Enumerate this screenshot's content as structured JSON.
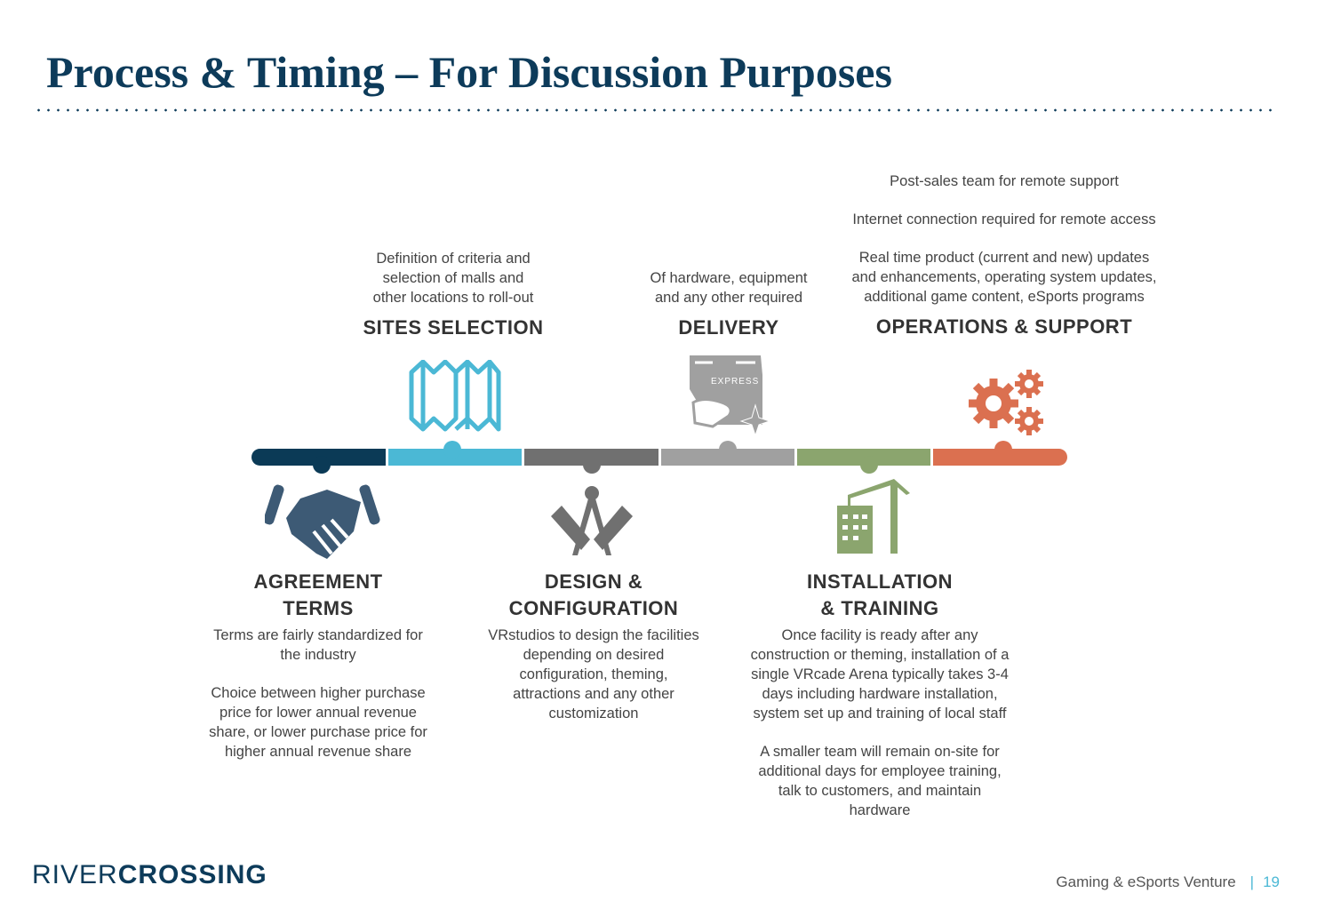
{
  "title": "Process & Timing – For Discussion Purposes",
  "colors": {
    "navy": "#0b3a56",
    "blue": "#4bb8d5",
    "gray": "#707070",
    "lightgray": "#a0a0a0",
    "green": "#8ba56e",
    "orange": "#db7050"
  },
  "steps": {
    "agreement": {
      "title1": "AGREEMENT",
      "title2": "TERMS",
      "desc": [
        "Terms are fairly standardized for",
        "the industry",
        "",
        "Choice between higher purchase",
        "price for lower annual revenue",
        "share, or lower purchase price for",
        "higher annual revenue share"
      ],
      "icon": "handshake-icon"
    },
    "sites": {
      "title": "SITES SELECTION",
      "desc": [
        "Definition of criteria and",
        "selection of malls and",
        "other locations to roll-out"
      ],
      "icon": "map-icon"
    },
    "design": {
      "title1": "DESIGN &",
      "title2": "CONFIGURATION",
      "desc": [
        "VRstudios to design the facilities",
        "depending on desired",
        "configuration, theming,",
        "attractions and any other",
        "customization"
      ],
      "icon": "compass-ruler-icon"
    },
    "delivery": {
      "title": "DELIVERY",
      "desc": [
        "Of hardware, equipment",
        "and any other required"
      ],
      "icon": "express-box-icon",
      "icon_text": "EXPRESS"
    },
    "installation": {
      "title1": "INSTALLATION",
      "title2": "& TRAINING",
      "desc": [
        "Once facility is ready after any",
        "construction or theming, installation of a",
        "single VRcade Arena typically takes 3-4",
        "days including hardware installation,",
        "system set up and training of local staff",
        "",
        "A smaller team will remain on-site for",
        "additional days for employee training,",
        "talk to customers, and maintain",
        "hardware"
      ],
      "icon": "crane-building-icon"
    },
    "operations": {
      "title": "OPERATIONS & SUPPORT",
      "desc": [
        "Post-sales team for remote support",
        "",
        "Internet connection required for remote access",
        "",
        "Real time product (current and new) updates",
        "and enhancements, operating system updates,",
        "additional game content, eSports programs"
      ],
      "icon": "gears-icon"
    }
  },
  "footer": {
    "logo_light": "RIVER",
    "logo_bold": "CROSSING",
    "text": "Gaming & eSports Venture",
    "separator": "|",
    "page": "19"
  }
}
